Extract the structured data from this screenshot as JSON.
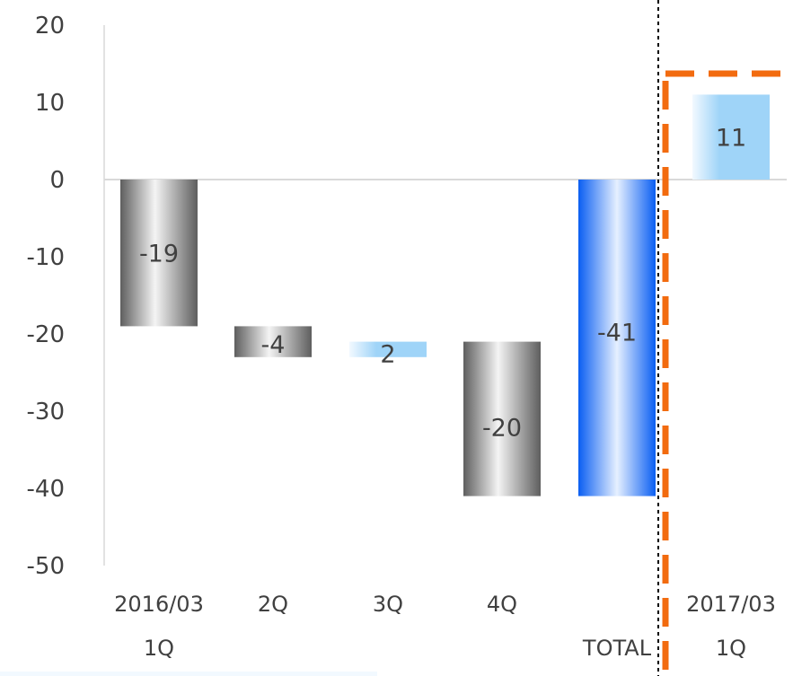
{
  "chart_data": {
    "type": "waterfall",
    "ylim": [
      -50,
      20
    ],
    "yticks": [
      20,
      10,
      0,
      -10,
      -20,
      -30,
      -40,
      -50
    ],
    "grid": false,
    "legend": "none",
    "bars": [
      {
        "label_line1": "2016/03",
        "label_line2": "1Q",
        "start": 0,
        "end": -19,
        "value_label": "-19",
        "style": "gray"
      },
      {
        "label_line1": "2Q",
        "label_line2": "",
        "start": -19,
        "end": -23,
        "value_label": "-4",
        "style": "gray"
      },
      {
        "label_line1": "3Q",
        "label_line2": "",
        "start": -23,
        "end": -21,
        "value_label": "2",
        "style": "lightblue"
      },
      {
        "label_line1": "4Q",
        "label_line2": "",
        "start": -21,
        "end": -41,
        "value_label": "-20",
        "style": "gray"
      },
      {
        "label_line1": "",
        "label_line2": "TOTAL",
        "start": 0,
        "end": -41,
        "value_label": "-41",
        "style": "blue"
      },
      {
        "label_line1": "2017/03",
        "label_line2": "1Q",
        "start": 0,
        "end": 11,
        "value_label": "11",
        "style": "lightblue"
      }
    ],
    "colors": {
      "gray_dark": "#5e5e5e",
      "gray_light": "#f4f4f4",
      "blue_dark": "#0a5ef2",
      "blue_light": "#e6f0ff",
      "lightblue_dark": "#9fd4f8",
      "lightblue_light": "#f2f9ff",
      "highlight": "#f26b0f",
      "axis": "#d9d9d9",
      "divider": "#000000"
    }
  }
}
